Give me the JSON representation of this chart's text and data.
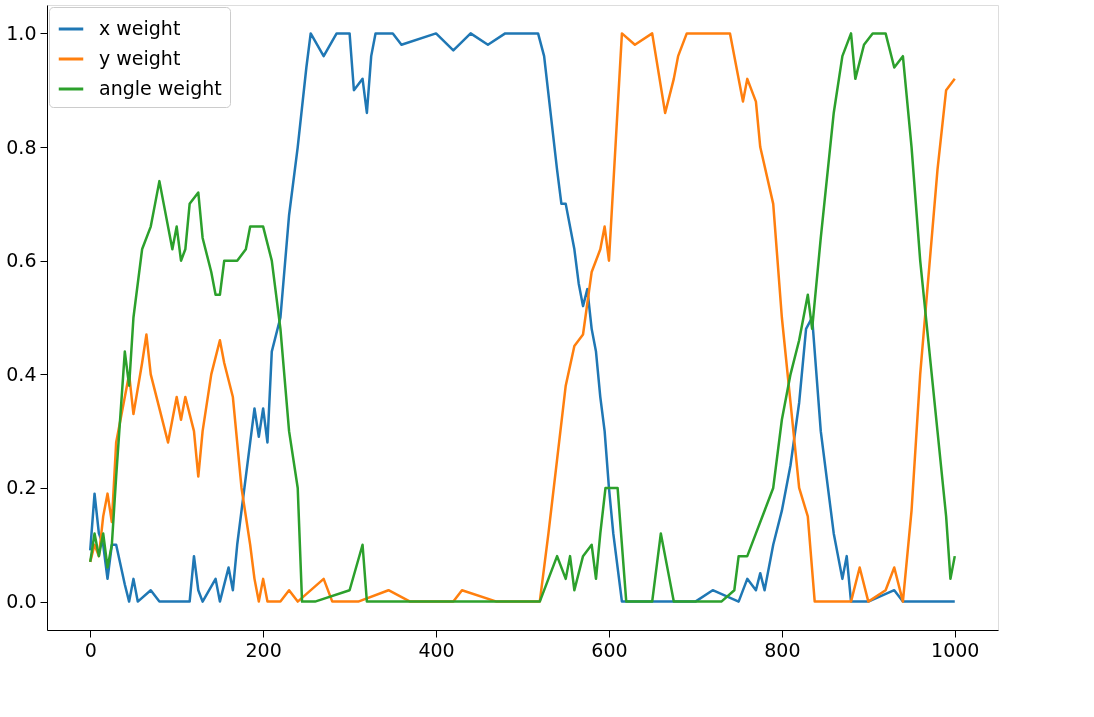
{
  "chart_data": {
    "type": "line",
    "legend": "top left",
    "grid": false,
    "line_style": "solid",
    "marker": "none",
    "xlim": [
      -50,
      1050
    ],
    "xticks": [
      0,
      200,
      400,
      600,
      800,
      1000
    ],
    "ylim": [
      -0.05,
      1.05
    ],
    "yticks": [
      {
        "value": 0,
        "label": "0.0"
      },
      {
        "value": 0.2,
        "label": "0.2"
      },
      {
        "value": 0.4,
        "label": "0.4"
      },
      {
        "value": 0.6,
        "label": "0.6"
      },
      {
        "value": 0.8,
        "label": "0.8"
      },
      {
        "value": 1,
        "label": "1.0"
      }
    ],
    "series": [
      {
        "name": "x weight",
        "color": "#1f77b4",
        "x": [
          0,
          5,
          10,
          15,
          20,
          25,
          30,
          40,
          45,
          50,
          55,
          70,
          80,
          100,
          115,
          120,
          125,
          130,
          145,
          150,
          160,
          165,
          170,
          180,
          190,
          195,
          200,
          205,
          210,
          220,
          230,
          240,
          250,
          255,
          270,
          285,
          300,
          305,
          315,
          320,
          325,
          330,
          350,
          360,
          400,
          420,
          440,
          460,
          480,
          500,
          518,
          525,
          540,
          545,
          550,
          560,
          565,
          570,
          575,
          580,
          585,
          590,
          595,
          600,
          605,
          615,
          700,
          720,
          750,
          760,
          770,
          775,
          780,
          790,
          800,
          810,
          820,
          828,
          835,
          845,
          860,
          870,
          875,
          880,
          900,
          930,
          940,
          1000
        ],
        "values": [
          0.09,
          0.19,
          0.12,
          0.1,
          0.04,
          0.1,
          0.1,
          0.03,
          0.0,
          0.04,
          0.0,
          0.02,
          0.0,
          0.0,
          0.0,
          0.08,
          0.02,
          0.0,
          0.04,
          0.0,
          0.06,
          0.02,
          0.1,
          0.22,
          0.34,
          0.29,
          0.34,
          0.28,
          0.44,
          0.5,
          0.68,
          0.8,
          0.94,
          1.0,
          0.96,
          1.0,
          1.0,
          0.9,
          0.92,
          0.86,
          0.96,
          1.0,
          1.0,
          0.98,
          1.0,
          0.97,
          1.0,
          0.98,
          1.0,
          1.0,
          1.0,
          0.96,
          0.76,
          0.7,
          0.7,
          0.62,
          0.56,
          0.52,
          0.55,
          0.48,
          0.44,
          0.36,
          0.3,
          0.2,
          0.12,
          0.0,
          0.0,
          0.02,
          0.0,
          0.04,
          0.02,
          0.05,
          0.02,
          0.1,
          0.16,
          0.24,
          0.35,
          0.48,
          0.5,
          0.3,
          0.12,
          0.04,
          0.08,
          0.0,
          0.0,
          0.02,
          0.0,
          0.0
        ]
      },
      {
        "name": "y weight",
        "color": "#ff7f0e",
        "x": [
          0,
          5,
          10,
          15,
          20,
          25,
          30,
          40,
          45,
          50,
          60,
          65,
          70,
          80,
          90,
          100,
          105,
          110,
          120,
          125,
          130,
          140,
          150,
          155,
          165,
          175,
          185,
          190,
          195,
          200,
          205,
          220,
          230,
          240,
          270,
          280,
          310,
          345,
          370,
          420,
          430,
          470,
          520,
          530,
          540,
          550,
          560,
          570,
          580,
          590,
          595,
          600,
          615,
          630,
          650,
          665,
          675,
          680,
          690,
          720,
          740,
          755,
          760,
          770,
          775,
          790,
          800,
          810,
          820,
          830,
          838,
          880,
          890,
          900,
          920,
          930,
          940,
          950,
          960,
          980,
          990,
          1000
        ],
        "values": [
          0.07,
          0.1,
          0.08,
          0.15,
          0.19,
          0.14,
          0.28,
          0.36,
          0.4,
          0.33,
          0.42,
          0.47,
          0.4,
          0.34,
          0.28,
          0.36,
          0.32,
          0.36,
          0.3,
          0.22,
          0.3,
          0.4,
          0.46,
          0.42,
          0.36,
          0.2,
          0.1,
          0.04,
          0.0,
          0.04,
          0.0,
          0.0,
          0.02,
          0.0,
          0.04,
          0.0,
          0.0,
          0.02,
          0.0,
          0.0,
          0.02,
          0.0,
          0.0,
          0.12,
          0.25,
          0.38,
          0.45,
          0.47,
          0.58,
          0.62,
          0.66,
          0.6,
          1.0,
          0.98,
          1.0,
          0.86,
          0.92,
          0.96,
          1.0,
          1.0,
          1.0,
          0.88,
          0.92,
          0.88,
          0.8,
          0.7,
          0.5,
          0.35,
          0.2,
          0.15,
          0.0,
          0.0,
          0.06,
          0.0,
          0.02,
          0.06,
          0.0,
          0.16,
          0.4,
          0.76,
          0.9,
          0.92
        ]
      },
      {
        "name": "angle weight",
        "color": "#2ca02c",
        "x": [
          0,
          5,
          10,
          15,
          20,
          25,
          30,
          40,
          45,
          50,
          60,
          70,
          75,
          80,
          85,
          95,
          100,
          105,
          110,
          115,
          125,
          130,
          140,
          145,
          150,
          155,
          170,
          180,
          185,
          200,
          210,
          220,
          230,
          240,
          245,
          260,
          300,
          315,
          320,
          350,
          500,
          520,
          530,
          540,
          550,
          555,
          560,
          570,
          580,
          585,
          590,
          596,
          610,
          620,
          650,
          660,
          670,
          675,
          730,
          745,
          750,
          760,
          770,
          780,
          790,
          800,
          810,
          820,
          830,
          835,
          845,
          860,
          870,
          880,
          885,
          895,
          905,
          920,
          930,
          940,
          950,
          960,
          980,
          990,
          995,
          1000
        ],
        "values": [
          0.07,
          0.12,
          0.08,
          0.12,
          0.06,
          0.1,
          0.22,
          0.44,
          0.38,
          0.5,
          0.62,
          0.66,
          0.7,
          0.74,
          0.7,
          0.62,
          0.66,
          0.6,
          0.62,
          0.7,
          0.72,
          0.64,
          0.58,
          0.54,
          0.54,
          0.6,
          0.6,
          0.62,
          0.66,
          0.66,
          0.6,
          0.48,
          0.3,
          0.2,
          0.0,
          0.0,
          0.02,
          0.1,
          0.0,
          0.0,
          0.0,
          0.0,
          0.04,
          0.08,
          0.04,
          0.08,
          0.02,
          0.08,
          0.1,
          0.04,
          0.12,
          0.2,
          0.2,
          0.0,
          0.0,
          0.12,
          0.04,
          0.0,
          0.0,
          0.02,
          0.08,
          0.08,
          0.12,
          0.16,
          0.2,
          0.32,
          0.4,
          0.46,
          0.54,
          0.48,
          0.64,
          0.86,
          0.96,
          1.0,
          0.92,
          0.98,
          1.0,
          1.0,
          0.94,
          0.96,
          0.8,
          0.6,
          0.3,
          0.15,
          0.04,
          0.08
        ]
      }
    ]
  }
}
